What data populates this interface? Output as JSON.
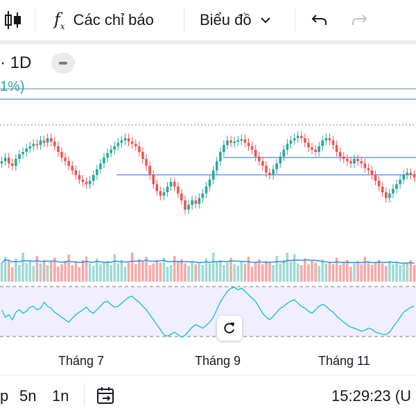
{
  "toolbar": {
    "candles_icon": "candlestick-chart-icon",
    "indicators_icon": "fx-icon",
    "indicators_label": "Các chỉ báo",
    "chart_type_label": "Biểu đồ",
    "undo_icon": "undo-icon",
    "redo_icon": "redo-icon"
  },
  "legend": {
    "interval": "· 1D",
    "change_pct": "1%)"
  },
  "x_axis": {
    "labels": [
      "Tháng 7",
      "Tháng 9",
      "Tháng 11"
    ]
  },
  "bottom_bar": {
    "ranges": [
      "p",
      "5n",
      "1n"
    ],
    "date_range_icon": "date-range-icon",
    "time": "15:29:23 (U"
  },
  "colors": {
    "up": "#26a69a",
    "down": "#ef5350",
    "line": "#2962ff",
    "rsi": "#26c6da",
    "rsi_band": "#f1effd"
  },
  "chart_data": {
    "type": "candlestick",
    "grid": false,
    "drawings": "horizontal levels",
    "close": [
      0.42,
      0.45,
      0.4,
      0.38,
      0.44,
      0.48,
      0.5,
      0.53,
      0.55,
      0.57,
      0.56,
      0.6,
      0.58,
      0.62,
      0.59,
      0.55,
      0.5,
      0.45,
      0.42,
      0.38,
      0.34,
      0.3,
      0.26,
      0.24,
      0.22,
      0.25,
      0.3,
      0.35,
      0.4,
      0.45,
      0.49,
      0.52,
      0.55,
      0.58,
      0.6,
      0.62,
      0.59,
      0.57,
      0.55,
      0.5,
      0.44,
      0.38,
      0.3,
      0.22,
      0.16,
      0.12,
      0.15,
      0.2,
      0.24,
      0.2,
      0.14,
      0.08,
      0.0,
      0.04,
      0.08,
      0.05,
      0.1,
      0.14,
      0.2,
      0.26,
      0.34,
      0.42,
      0.5,
      0.56,
      0.6,
      0.58,
      0.59,
      0.6,
      0.61,
      0.58,
      0.55,
      0.52,
      0.46,
      0.42,
      0.38,
      0.32,
      0.3,
      0.35,
      0.4,
      0.46,
      0.52,
      0.57,
      0.6,
      0.62,
      0.64,
      0.62,
      0.58,
      0.54,
      0.52,
      0.5,
      0.55,
      0.6,
      0.62,
      0.6,
      0.56,
      0.5,
      0.46,
      0.44,
      0.42,
      0.4,
      0.44,
      0.42,
      0.4,
      0.36,
      0.34,
      0.3,
      0.25,
      0.2,
      0.15,
      0.1,
      0.14,
      0.18,
      0.22,
      0.26,
      0.3,
      0.32,
      0.3,
      0.28
    ],
    "volume": [
      0.45,
      0.6,
      0.5,
      0.35,
      0.55,
      0.4,
      0.7,
      0.45,
      0.5,
      0.38,
      0.62,
      0.44,
      0.52,
      0.4,
      0.48,
      0.58,
      0.36,
      0.42,
      0.5,
      0.65,
      0.4,
      0.46,
      0.35,
      0.52,
      0.6,
      0.44,
      0.38,
      0.56,
      0.42,
      0.48,
      0.5,
      0.4,
      0.66,
      0.44,
      0.52,
      0.36,
      0.46,
      0.7,
      0.42,
      0.54,
      0.48,
      0.6,
      0.4,
      0.44,
      0.52,
      0.46,
      0.58,
      0.36,
      0.4,
      0.62,
      0.48,
      0.54,
      0.44,
      0.38,
      0.5,
      0.42,
      0.46,
      0.4,
      0.56,
      0.44,
      0.7,
      0.48,
      0.52,
      0.4,
      0.46,
      0.58,
      0.42,
      0.38,
      0.5,
      0.44,
      0.6,
      0.36,
      0.48,
      0.54,
      0.42,
      0.5,
      0.46,
      0.4,
      0.62,
      0.44,
      0.52,
      0.7,
      0.48,
      0.66,
      0.44,
      0.4,
      0.56,
      0.42,
      0.5,
      0.46,
      0.38,
      0.54,
      0.44,
      0.48,
      0.42,
      0.58,
      0.4,
      0.46,
      0.52,
      0.36,
      0.44,
      0.5,
      0.42,
      0.6,
      0.48,
      0.4,
      0.46,
      0.52,
      0.44,
      0.38,
      0.5,
      0.42,
      0.48,
      0.4,
      0.46,
      0.44,
      0.52,
      0.4
    ],
    "rsi": [
      0.55,
      0.4,
      0.45,
      0.35,
      0.5,
      0.55,
      0.48,
      0.52,
      0.6,
      0.62,
      0.55,
      0.58,
      0.7,
      0.62,
      0.58,
      0.5,
      0.45,
      0.4,
      0.35,
      0.3,
      0.38,
      0.45,
      0.5,
      0.55,
      0.6,
      0.52,
      0.48,
      0.55,
      0.62,
      0.7,
      0.72,
      0.65,
      0.6,
      0.62,
      0.68,
      0.74,
      0.8,
      0.82,
      0.75,
      0.7,
      0.62,
      0.55,
      0.45,
      0.35,
      0.25,
      0.15,
      0.05,
      0.02,
      0.06,
      0.1,
      0.05,
      0.0,
      0.04,
      0.12,
      0.2,
      0.25,
      0.22,
      0.18,
      0.24,
      0.3,
      0.4,
      0.55,
      0.7,
      0.82,
      0.92,
      0.98,
      1.0,
      0.95,
      0.98,
      0.92,
      0.85,
      0.78,
      0.72,
      0.6,
      0.48,
      0.4,
      0.35,
      0.42,
      0.5,
      0.58,
      0.62,
      0.68,
      0.72,
      0.75,
      0.68,
      0.62,
      0.58,
      0.52,
      0.48,
      0.55,
      0.62,
      0.66,
      0.62,
      0.55,
      0.5,
      0.42,
      0.36,
      0.3,
      0.25,
      0.2,
      0.18,
      0.15,
      0.12,
      0.14,
      0.18,
      0.16,
      0.1,
      0.08,
      0.06,
      0.05,
      0.1,
      0.2,
      0.3,
      0.4,
      0.5,
      0.55,
      0.6,
      0.62
    ],
    "x_tick_labels": [
      "Tháng 7",
      "Tháng 9",
      "Tháng 11"
    ]
  }
}
